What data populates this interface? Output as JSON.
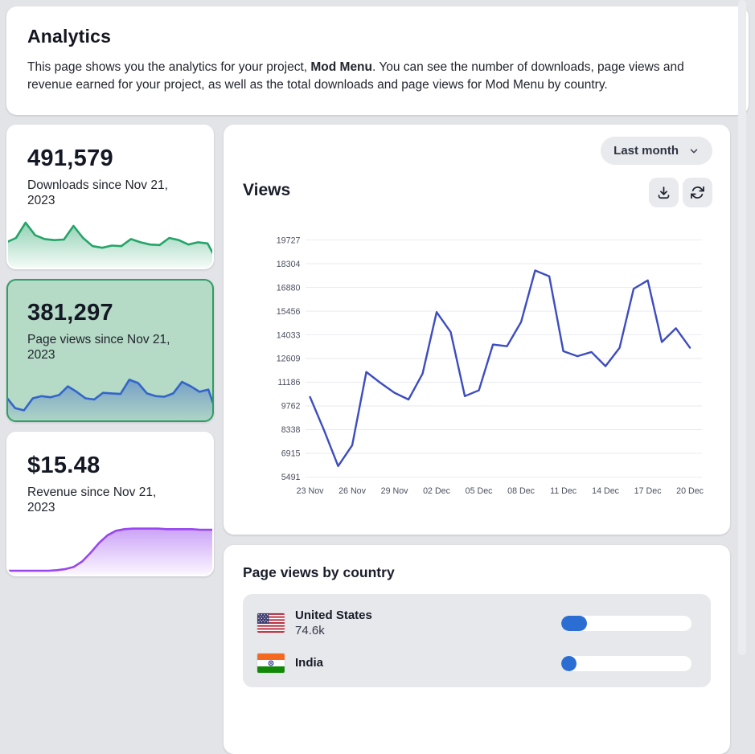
{
  "page": {
    "title": "Analytics",
    "description": {
      "before": "This page shows you the analytics for your project, ",
      "project_name": "Mod Menu",
      "after": ". You can see the number of downloads, page views and revenue earned for your project, as well as the total downloads and page views for Mod Menu by country."
    }
  },
  "stats": [
    {
      "value": "491,579",
      "label": "Downloads since Nov 21, 2023",
      "selected": false,
      "color": "#25a469",
      "spark": [
        42,
        50,
        78,
        55,
        48,
        46,
        47,
        72,
        50,
        35,
        32,
        36,
        35,
        48,
        42,
        38,
        37,
        50,
        46,
        38,
        42,
        40,
        8
      ]
    },
    {
      "value": "381,297",
      "label": "Page views since Nov 21, 2023",
      "selected": true,
      "color": "#3465c8",
      "spark": [
        38,
        18,
        14,
        36,
        40,
        38,
        42,
        58,
        48,
        36,
        34,
        46,
        45,
        44,
        70,
        64,
        45,
        40,
        39,
        45,
        66,
        58,
        48,
        52,
        6
      ]
    },
    {
      "value": "$15.48",
      "label": "Revenue since Nov 21, 2023",
      "selected": false,
      "color": "#9847ef",
      "spark": [
        3,
        3,
        3,
        3,
        3,
        3,
        4,
        6,
        10,
        20,
        36,
        54,
        68,
        76,
        79,
        80,
        80,
        80,
        80,
        79,
        79,
        79,
        79,
        78,
        78,
        78
      ]
    }
  ],
  "chart_panel": {
    "range_selector": "Last month",
    "title": "Views",
    "icons": [
      "chevron-down-icon",
      "download-icon",
      "refresh-icon"
    ]
  },
  "chart_data": {
    "type": "line",
    "title": "Views",
    "x": [
      "23 Nov",
      "24 Nov",
      "25 Nov",
      "26 Nov",
      "27 Nov",
      "28 Nov",
      "29 Nov",
      "30 Nov",
      "01 Dec",
      "02 Dec",
      "03 Dec",
      "04 Dec",
      "05 Dec",
      "06 Dec",
      "07 Dec",
      "08 Dec",
      "09 Dec",
      "10 Dec",
      "11 Dec",
      "12 Dec",
      "13 Dec",
      "14 Dec",
      "15 Dec",
      "16 Dec",
      "17 Dec",
      "18 Dec",
      "19 Dec",
      "20 Dec"
    ],
    "values": [
      10300,
      8300,
      6150,
      7400,
      11800,
      11150,
      10550,
      10150,
      11700,
      15400,
      14200,
      10350,
      10700,
      13450,
      13350,
      14800,
      17900,
      17550,
      13050,
      12750,
      13000,
      12150,
      13250,
      16800,
      17300,
      13600,
      14430,
      13260
    ],
    "x_tick_labels": [
      "23 Nov",
      "26 Nov",
      "29 Nov",
      "02 Dec",
      "05 Dec",
      "08 Dec",
      "11 Dec",
      "14 Dec",
      "17 Dec",
      "20 Dec"
    ],
    "y_ticks": [
      "19727",
      "18304",
      "16880",
      "15456",
      "14033",
      "12609",
      "11186",
      "9762",
      "8338",
      "6915",
      "5491"
    ],
    "ylim": [
      5491,
      19727
    ],
    "line_color": "#3e4dbf",
    "grid": true,
    "legend_position": "none"
  },
  "countries": {
    "title": "Page views by country",
    "bar_color": "#2b6ed3",
    "rows": [
      {
        "name": "United States",
        "value": "74.6k",
        "percent": 19.6,
        "flag": "us"
      },
      {
        "name": "India",
        "value": "",
        "percent": 12,
        "flag": "in"
      }
    ]
  },
  "theme": {
    "page_bg": "#e3e4e8",
    "card_bg": "#ffffff",
    "selected_card_bg": "#b5dac6",
    "selected_card_border": "#2f9e63",
    "muted_bg": "#e9eaee",
    "grid_color": "#e8e9ee",
    "text_dark": "#141824"
  }
}
